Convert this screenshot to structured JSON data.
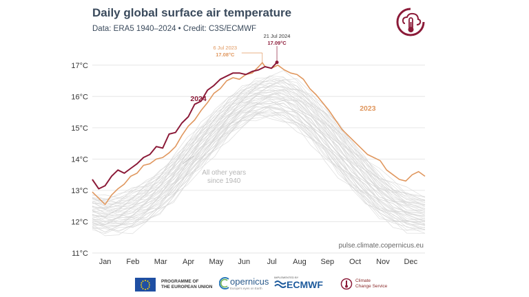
{
  "header": {
    "title": "Daily global surface air temperature",
    "subtitle": "Data: ERA5 1940–2024 • Credit: C3S/ECMWF"
  },
  "footer": {
    "eu_line1": "PROGRAMME OF",
    "eu_line2": "THE EUROPEAN UNION",
    "copernicus": "opernicus",
    "copernicus_sub": "Europe's eyes on Earth",
    "ecmwf_small": "IMPLEMENTED BY",
    "ecmwf": "ECMWF",
    "c3s_line1": "Climate",
    "c3s_line2": "Change Service"
  },
  "colors": {
    "series_2024": "#8b1a38",
    "series_2023": "#e0975e",
    "other_years": "#d4d4d4",
    "text": "#3a4a5c"
  },
  "chart_data": {
    "type": "line",
    "title": "Daily global surface air temperature",
    "xlabel": "",
    "ylabel": "",
    "x_unit": "day of year",
    "xlim": [
      1,
      365
    ],
    "ylim": [
      11,
      17.5
    ],
    "y_ticks": [
      11,
      12,
      13,
      14,
      15,
      16,
      17
    ],
    "y_tick_labels": [
      "11°C",
      "12°C",
      "13°C",
      "14°C",
      "15°C",
      "16°C",
      "17°C"
    ],
    "month_labels": [
      "Jan",
      "Feb",
      "Mar",
      "Apr",
      "May",
      "Jun",
      "Jul",
      "Aug",
      "Sep",
      "Oct",
      "Nov",
      "Dec"
    ],
    "grid": true,
    "watermark": "pulse.climate.copernicus.eu",
    "series": [
      {
        "name": "2024",
        "label": "2024",
        "color": "#8b1a38",
        "x": [
          1,
          8,
          15,
          22,
          29,
          36,
          43,
          50,
          57,
          64,
          71,
          78,
          85,
          92,
          99,
          106,
          113,
          120,
          127,
          134,
          141,
          148,
          155,
          162,
          169,
          176,
          183,
          190,
          197,
          203
        ],
        "y": [
          13.35,
          13.05,
          13.15,
          13.45,
          13.65,
          13.55,
          13.7,
          13.85,
          14.05,
          14.15,
          14.4,
          14.35,
          14.8,
          14.85,
          15.15,
          15.35,
          15.75,
          15.85,
          16.2,
          16.35,
          16.55,
          16.65,
          16.75,
          16.75,
          16.7,
          16.8,
          16.85,
          16.95,
          16.9,
          17.09
        ]
      },
      {
        "name": "2023",
        "label": "2023",
        "color": "#e0975e",
        "x": [
          1,
          8,
          15,
          22,
          29,
          36,
          43,
          50,
          57,
          64,
          71,
          78,
          85,
          92,
          99,
          106,
          113,
          120,
          127,
          134,
          141,
          148,
          155,
          162,
          169,
          176,
          183,
          187,
          190,
          197,
          204,
          211,
          218,
          225,
          232,
          239,
          246,
          253,
          260,
          267,
          274,
          281,
          288,
          295,
          302,
          309,
          316,
          323,
          330,
          337,
          344,
          351,
          358,
          365
        ],
        "y": [
          12.95,
          12.75,
          12.55,
          12.85,
          13.05,
          13.2,
          13.45,
          13.55,
          13.8,
          13.85,
          14.0,
          14.05,
          14.2,
          14.4,
          14.75,
          15.05,
          15.25,
          15.55,
          15.8,
          16.1,
          16.25,
          16.5,
          16.6,
          16.55,
          16.7,
          16.75,
          16.95,
          17.08,
          16.95,
          16.9,
          17.0,
          16.85,
          16.75,
          16.7,
          16.55,
          16.25,
          16.05,
          15.8,
          15.55,
          15.25,
          14.95,
          14.75,
          14.55,
          14.35,
          14.15,
          14.05,
          13.95,
          13.65,
          13.5,
          13.35,
          13.3,
          13.5,
          13.6,
          13.45
        ]
      },
      {
        "name": "All other years since 1940",
        "label": "All other years\nsince 1940",
        "color": "#d4d4d4",
        "x": [
          1,
          15,
          30,
          45,
          60,
          75,
          90,
          105,
          120,
          135,
          150,
          165,
          180,
          195,
          210,
          225,
          240,
          255,
          270,
          285,
          300,
          315,
          330,
          345,
          365
        ],
        "y_low": [
          11.75,
          11.65,
          11.7,
          11.8,
          12.0,
          12.3,
          12.7,
          13.25,
          13.75,
          14.25,
          14.75,
          15.1,
          15.3,
          15.35,
          15.25,
          15.0,
          14.6,
          14.1,
          13.55,
          13.05,
          12.6,
          12.2,
          11.95,
          11.75,
          11.65
        ],
        "y_high": [
          12.85,
          12.75,
          12.8,
          13.0,
          13.25,
          13.6,
          14.05,
          14.55,
          15.05,
          15.5,
          15.9,
          16.25,
          16.5,
          16.65,
          16.65,
          16.45,
          16.05,
          15.6,
          15.1,
          14.55,
          14.05,
          13.55,
          13.2,
          12.95,
          12.8
        ]
      }
    ],
    "annotations": [
      {
        "date": "6 Jul 2023",
        "value": "17.08°C",
        "x": 187,
        "y": 17.08,
        "color": "#e0975e"
      },
      {
        "date": "21 Jul 2024",
        "value": "17.09°C",
        "x": 203,
        "y": 17.09,
        "color": "#8b1a38"
      }
    ]
  }
}
